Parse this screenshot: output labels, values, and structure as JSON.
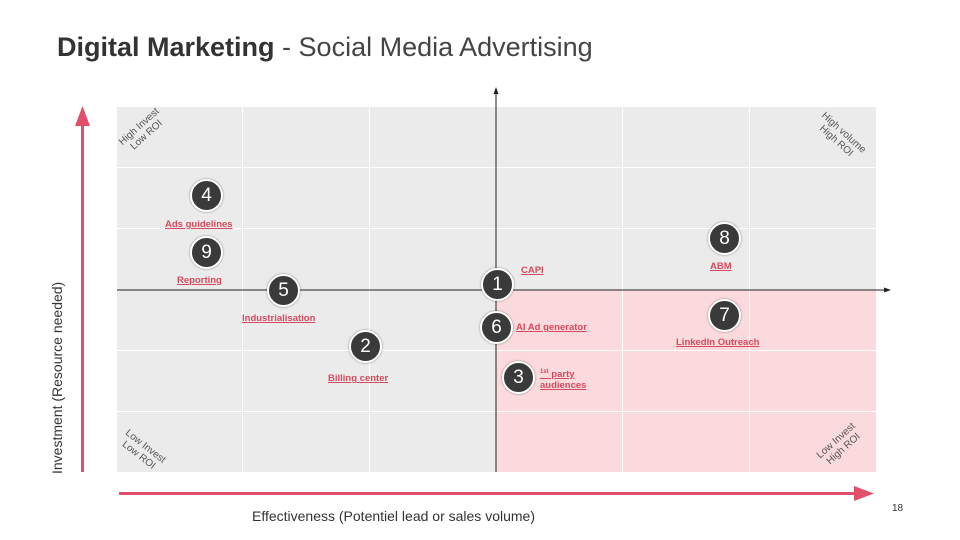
{
  "title": {
    "main": "Digital Marketing",
    "subtitle": "- Social Media Advertising"
  },
  "axes": {
    "y_label": "Investment (Resource needed)",
    "x_label": "Effectiveness (Potentiel lead or sales volume)"
  },
  "corners": {
    "top_left": [
      "High Invest",
      "Low ROI"
    ],
    "top_right": [
      "High volume",
      "High ROI"
    ],
    "bottom_left": [
      "Low Invest",
      "Low ROI"
    ],
    "bottom_right": [
      "Low Invest",
      "High ROI"
    ]
  },
  "items": [
    {
      "number": "1",
      "label": "CAPI"
    },
    {
      "number": "2",
      "label": "Billing center"
    },
    {
      "number": "3",
      "label_sup": "1st",
      "label_line1": " party",
      "label_line2": "audiences"
    },
    {
      "number": "4",
      "label": "Ads guidelines"
    },
    {
      "number": "5",
      "label": "Industrialisation"
    },
    {
      "number": "6",
      "label": "AI Ad generator"
    },
    {
      "number": "7",
      "label": "LinkedIn Outreach"
    },
    {
      "number": "8",
      "label": "ABM"
    },
    {
      "number": "9",
      "label": "Reporting"
    }
  ],
  "colors": {
    "accent": "#e0506a",
    "highlight_quadrant": "#fadadd",
    "grid": "#ebebeb",
    "marker": "#3a3a3a"
  },
  "page_number": "18"
}
